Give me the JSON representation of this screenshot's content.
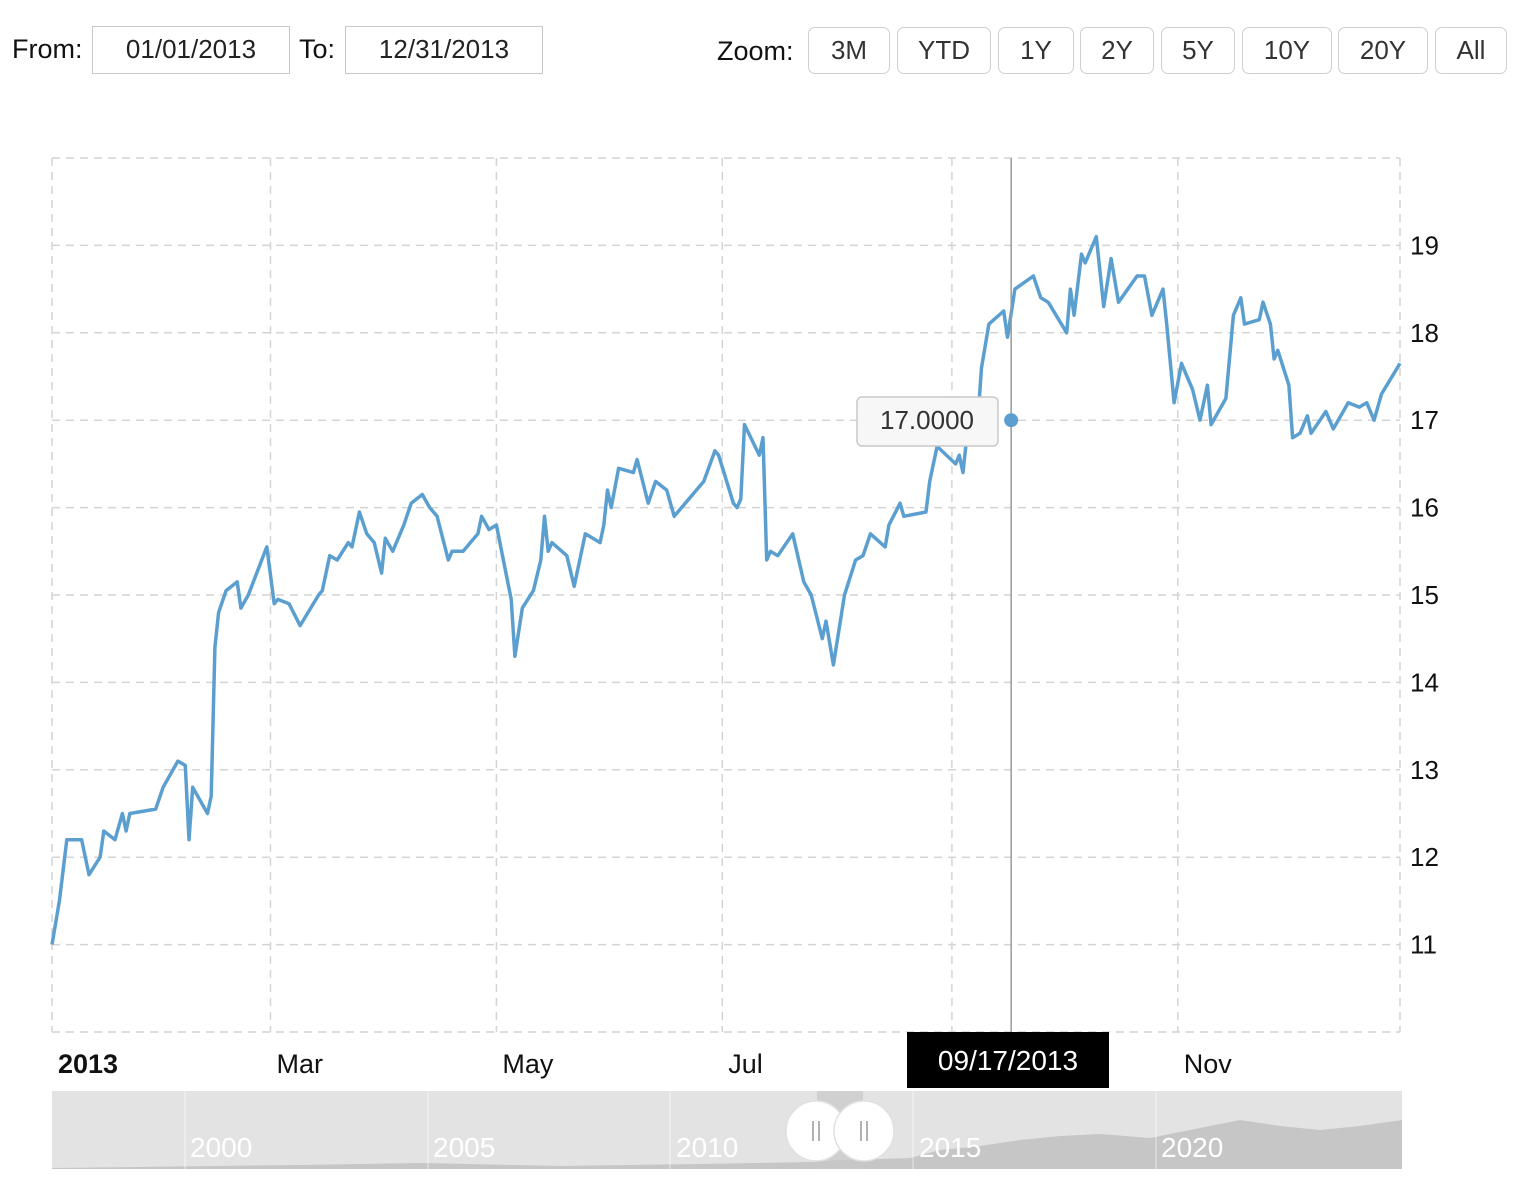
{
  "range": {
    "from_label": "From:",
    "from_value": "01/01/2013",
    "to_label": "To:",
    "to_value": "12/31/2013"
  },
  "zoom": {
    "label": "Zoom:",
    "buttons": [
      "3M",
      "YTD",
      "1Y",
      "2Y",
      "5Y",
      "10Y",
      "20Y",
      "All"
    ]
  },
  "tooltip": {
    "value": "17.0000",
    "date": "09/17/2013"
  },
  "navigator": {
    "years": [
      "2000",
      "2005",
      "2010",
      "2015",
      "2020"
    ]
  },
  "colors": {
    "line": "#5b9fd0",
    "grid": "#d4d4d4",
    "navigator_bg": "#e3e3e3",
    "navigator_fill": "#c6c6c6"
  },
  "chart_data": {
    "type": "line",
    "title": "",
    "xlabel": "",
    "ylabel": "",
    "xlim": [
      "2013-01-01",
      "2013-12-31"
    ],
    "ylim": [
      10,
      20
    ],
    "y_ticks": [
      11,
      12,
      13,
      14,
      15,
      16,
      17,
      18,
      19
    ],
    "x_ticks": [
      {
        "date": "2013-01-01",
        "label": "2013",
        "bold": true
      },
      {
        "date": "2013-03-01",
        "label": "Mar"
      },
      {
        "date": "2013-05-01",
        "label": "May"
      },
      {
        "date": "2013-07-01",
        "label": "Jul"
      },
      {
        "date": "2013-09-01",
        "label": ""
      },
      {
        "date": "2013-11-01",
        "label": "Nov"
      },
      {
        "date": "2013-12-31",
        "label": ""
      }
    ],
    "grid": true,
    "y_axis_position": "right",
    "highlight": {
      "date": "2013-09-17",
      "value": 17.0
    },
    "series": [
      {
        "name": "",
        "points": [
          [
            "2013-01-01",
            11.0
          ],
          [
            "2013-01-03",
            11.5
          ],
          [
            "2013-01-05",
            12.2
          ],
          [
            "2013-01-09",
            12.2
          ],
          [
            "2013-01-11",
            11.8
          ],
          [
            "2013-01-14",
            12.0
          ],
          [
            "2013-01-15",
            12.3
          ],
          [
            "2013-01-18",
            12.2
          ],
          [
            "2013-01-20",
            12.5
          ],
          [
            "2013-01-21",
            12.3
          ],
          [
            "2013-01-22",
            12.5
          ],
          [
            "2013-01-29",
            12.55
          ],
          [
            "2013-01-31",
            12.8
          ],
          [
            "2013-02-04",
            13.1
          ],
          [
            "2013-02-06",
            13.05
          ],
          [
            "2013-02-07",
            12.2
          ],
          [
            "2013-02-08",
            12.8
          ],
          [
            "2013-02-12",
            12.5
          ],
          [
            "2013-02-13",
            12.7
          ],
          [
            "2013-02-14",
            14.4
          ],
          [
            "2013-02-15",
            14.8
          ],
          [
            "2013-02-17",
            15.05
          ],
          [
            "2013-02-20",
            15.15
          ],
          [
            "2013-02-21",
            14.85
          ],
          [
            "2013-02-23",
            15.0
          ],
          [
            "2013-02-28",
            15.55
          ],
          [
            "2013-03-02",
            14.9
          ],
          [
            "2013-03-03",
            14.95
          ],
          [
            "2013-03-06",
            14.9
          ],
          [
            "2013-03-09",
            14.65
          ],
          [
            "2013-03-14",
            15.0
          ],
          [
            "2013-03-15",
            15.05
          ],
          [
            "2013-03-17",
            15.45
          ],
          [
            "2013-03-19",
            15.4
          ],
          [
            "2013-03-22",
            15.6
          ],
          [
            "2013-03-23",
            15.55
          ],
          [
            "2013-03-25",
            15.95
          ],
          [
            "2013-03-27",
            15.7
          ],
          [
            "2013-03-29",
            15.6
          ],
          [
            "2013-03-31",
            15.25
          ],
          [
            "2013-04-01",
            15.65
          ],
          [
            "2013-04-03",
            15.5
          ],
          [
            "2013-04-06",
            15.8
          ],
          [
            "2013-04-08",
            16.05
          ],
          [
            "2013-04-11",
            16.15
          ],
          [
            "2013-04-13",
            16.0
          ],
          [
            "2013-04-15",
            15.9
          ],
          [
            "2013-04-18",
            15.4
          ],
          [
            "2013-04-19",
            15.5
          ],
          [
            "2013-04-22",
            15.5
          ],
          [
            "2013-04-26",
            15.7
          ],
          [
            "2013-04-27",
            15.9
          ],
          [
            "2013-04-29",
            15.75
          ],
          [
            "2013-05-01",
            15.8
          ],
          [
            "2013-05-05",
            14.95
          ],
          [
            "2013-05-06",
            14.3
          ],
          [
            "2013-05-08",
            14.85
          ],
          [
            "2013-05-11",
            15.05
          ],
          [
            "2013-05-13",
            15.4
          ],
          [
            "2013-05-14",
            15.9
          ],
          [
            "2013-05-15",
            15.5
          ],
          [
            "2013-05-16",
            15.6
          ],
          [
            "2013-05-20",
            15.45
          ],
          [
            "2013-05-22",
            15.1
          ],
          [
            "2013-05-25",
            15.7
          ],
          [
            "2013-05-29",
            15.6
          ],
          [
            "2013-05-30",
            15.8
          ],
          [
            "2013-05-31",
            16.2
          ],
          [
            "2013-06-01",
            16.0
          ],
          [
            "2013-06-03",
            16.45
          ],
          [
            "2013-06-07",
            16.4
          ],
          [
            "2013-06-08",
            16.55
          ],
          [
            "2013-06-11",
            16.05
          ],
          [
            "2013-06-13",
            16.3
          ],
          [
            "2013-06-16",
            16.2
          ],
          [
            "2013-06-18",
            15.9
          ],
          [
            "2013-06-26",
            16.3
          ],
          [
            "2013-06-29",
            16.65
          ],
          [
            "2013-06-30",
            16.6
          ],
          [
            "2013-07-04",
            16.05
          ],
          [
            "2013-07-05",
            16.0
          ],
          [
            "2013-07-06",
            16.1
          ],
          [
            "2013-07-07",
            16.95
          ],
          [
            "2013-07-11",
            16.6
          ],
          [
            "2013-07-12",
            16.8
          ],
          [
            "2013-07-13",
            15.4
          ],
          [
            "2013-07-14",
            15.5
          ],
          [
            "2013-07-16",
            15.45
          ],
          [
            "2013-07-20",
            15.7
          ],
          [
            "2013-07-23",
            15.15
          ],
          [
            "2013-07-25",
            15.0
          ],
          [
            "2013-07-28",
            14.5
          ],
          [
            "2013-07-29",
            14.7
          ],
          [
            "2013-07-31",
            14.2
          ],
          [
            "2013-08-03",
            15.0
          ],
          [
            "2013-08-06",
            15.4
          ],
          [
            "2013-08-08",
            15.45
          ],
          [
            "2013-08-10",
            15.7
          ],
          [
            "2013-08-14",
            15.55
          ],
          [
            "2013-08-15",
            15.8
          ],
          [
            "2013-08-18",
            16.05
          ],
          [
            "2013-08-19",
            15.9
          ],
          [
            "2013-08-25",
            15.95
          ],
          [
            "2013-08-26",
            16.3
          ],
          [
            "2013-08-28",
            16.7
          ],
          [
            "2013-09-02",
            16.5
          ],
          [
            "2013-09-03",
            16.6
          ],
          [
            "2013-09-04",
            16.4
          ],
          [
            "2013-09-05",
            16.8
          ],
          [
            "2013-09-08",
            17.0
          ],
          [
            "2013-09-09",
            17.6
          ],
          [
            "2013-09-11",
            18.1
          ],
          [
            "2013-09-15",
            18.25
          ],
          [
            "2013-09-16",
            17.95
          ],
          [
            "2013-09-18",
            18.5
          ],
          [
            "2013-09-23",
            18.65
          ],
          [
            "2013-09-25",
            18.4
          ],
          [
            "2013-09-27",
            18.35
          ],
          [
            "2013-10-02",
            18.0
          ],
          [
            "2013-10-03",
            18.5
          ],
          [
            "2013-10-04",
            18.2
          ],
          [
            "2013-10-06",
            18.9
          ],
          [
            "2013-10-07",
            18.8
          ],
          [
            "2013-10-10",
            19.1
          ],
          [
            "2013-10-12",
            18.3
          ],
          [
            "2013-10-14",
            18.85
          ],
          [
            "2013-10-16",
            18.35
          ],
          [
            "2013-10-21",
            18.65
          ],
          [
            "2013-10-23",
            18.65
          ],
          [
            "2013-10-25",
            18.2
          ],
          [
            "2013-10-28",
            18.5
          ],
          [
            "2013-10-29",
            18.1
          ],
          [
            "2013-10-31",
            17.2
          ],
          [
            "2013-11-02",
            17.65
          ],
          [
            "2013-11-05",
            17.35
          ],
          [
            "2013-11-07",
            17.0
          ],
          [
            "2013-11-09",
            17.4
          ],
          [
            "2013-11-10",
            16.95
          ],
          [
            "2013-11-14",
            17.25
          ],
          [
            "2013-11-16",
            18.2
          ],
          [
            "2013-11-18",
            18.4
          ],
          [
            "2013-11-19",
            18.1
          ],
          [
            "2013-11-23",
            18.15
          ],
          [
            "2013-11-24",
            18.35
          ],
          [
            "2013-11-26",
            18.1
          ],
          [
            "2013-11-27",
            17.7
          ],
          [
            "2013-11-28",
            17.8
          ],
          [
            "2013-12-01",
            17.4
          ],
          [
            "2013-12-02",
            16.8
          ],
          [
            "2013-12-04",
            16.85
          ],
          [
            "2013-12-06",
            17.05
          ],
          [
            "2013-12-07",
            16.85
          ],
          [
            "2013-12-11",
            17.1
          ],
          [
            "2013-12-13",
            16.9
          ],
          [
            "2013-12-17",
            17.2
          ],
          [
            "2013-12-20",
            17.15
          ],
          [
            "2013-12-22",
            17.2
          ],
          [
            "2013-12-24",
            17.0
          ],
          [
            "2013-12-26",
            17.3
          ],
          [
            "2013-12-31",
            17.65
          ]
        ]
      }
    ]
  }
}
